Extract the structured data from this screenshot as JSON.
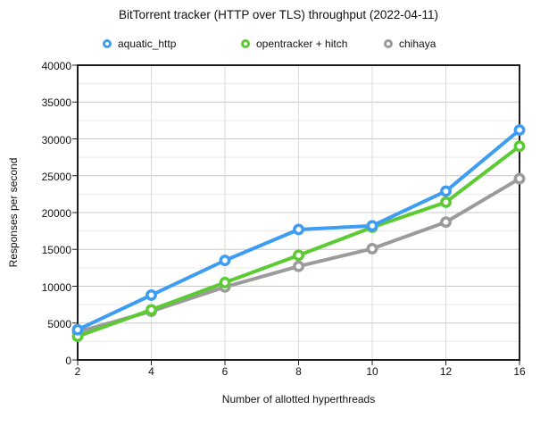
{
  "chart_data": {
    "type": "line",
    "title": "BitTorrent tracker (HTTP over TLS) throughput (2022-04-11)",
    "xlabel": "Number of allotted hyperthreads",
    "ylabel": "Responses per second",
    "categories": [
      2,
      4,
      6,
      8,
      10,
      12,
      16
    ],
    "series": [
      {
        "name": "aquatic_http",
        "color": "#3d9df3",
        "values": [
          4100,
          8800,
          13500,
          17700,
          18200,
          22900,
          31200
        ]
      },
      {
        "name": "opentracker + hitch",
        "color": "#5ccb33",
        "values": [
          3200,
          6800,
          10500,
          14200,
          18000,
          21400,
          29000
        ]
      },
      {
        "name": "chihaya",
        "color": "#9b9b9b",
        "values": [
          3800,
          6600,
          9900,
          12700,
          15100,
          18700,
          24600
        ]
      }
    ],
    "ylim": [
      0,
      40000
    ],
    "y_major_step": 5000,
    "y_minor_step": 2500,
    "y_tick_labels": [
      "0",
      "5000",
      "10000",
      "15000",
      "20000",
      "25000",
      "30000",
      "35000",
      "40000"
    ],
    "x_tick_labels": [
      "2",
      "4",
      "6",
      "8",
      "10",
      "12",
      "16"
    ],
    "grid": true,
    "legend_position": "top"
  }
}
